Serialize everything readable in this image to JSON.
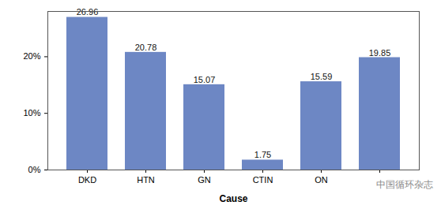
{
  "chart_data": {
    "type": "bar",
    "x_label": "Cause",
    "categories": [
      "DKD",
      "HTN",
      "GN",
      "CTIN",
      "ON",
      null
    ],
    "values": [
      26.96,
      20.78,
      15.07,
      1.75,
      15.59,
      19.85
    ],
    "color": "#6d87c4",
    "ylim": [
      0,
      28
    ],
    "yticks": [
      {
        "value": 0,
        "label": "0%"
      },
      {
        "value": 10,
        "label": "10%"
      },
      {
        "value": 20,
        "label": "20%"
      }
    ],
    "grid": false,
    "data_labels": true,
    "annotations": [
      "中国循环杂志"
    ]
  }
}
